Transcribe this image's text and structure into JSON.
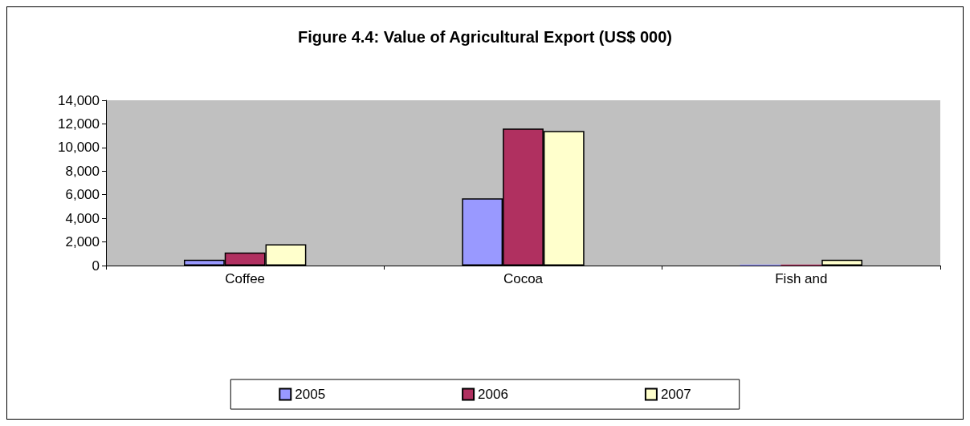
{
  "chart_data": {
    "type": "bar",
    "title": "Figure 4.4: Value of Agricultural Export (US$ 000)",
    "categories": [
      "Coffee",
      "Cocoa",
      "Fish and"
    ],
    "series": [
      {
        "name": "2005",
        "color": "#9999ff",
        "values": [
          500,
          5700,
          80
        ]
      },
      {
        "name": "2006",
        "color": "#b03060",
        "values": [
          1100,
          11600,
          80
        ]
      },
      {
        "name": "2007",
        "color": "#ffffcc",
        "values": [
          1800,
          11400,
          500
        ]
      }
    ],
    "ylim": [
      0,
      14000
    ],
    "yticks": [
      0,
      {
        "value": 2000,
        "label": "2,000"
      },
      {
        "value": 4000,
        "label": "4,000"
      },
      {
        "value": 6000,
        "label": "6,000"
      },
      {
        "value": 8000,
        "label": "8,000"
      },
      {
        "value": 10000,
        "label": "10,000"
      },
      {
        "value": 12000,
        "label": "12,000"
      },
      {
        "value": 14000,
        "label": "14,000"
      }
    ],
    "grid": false,
    "legend": "bottom"
  }
}
